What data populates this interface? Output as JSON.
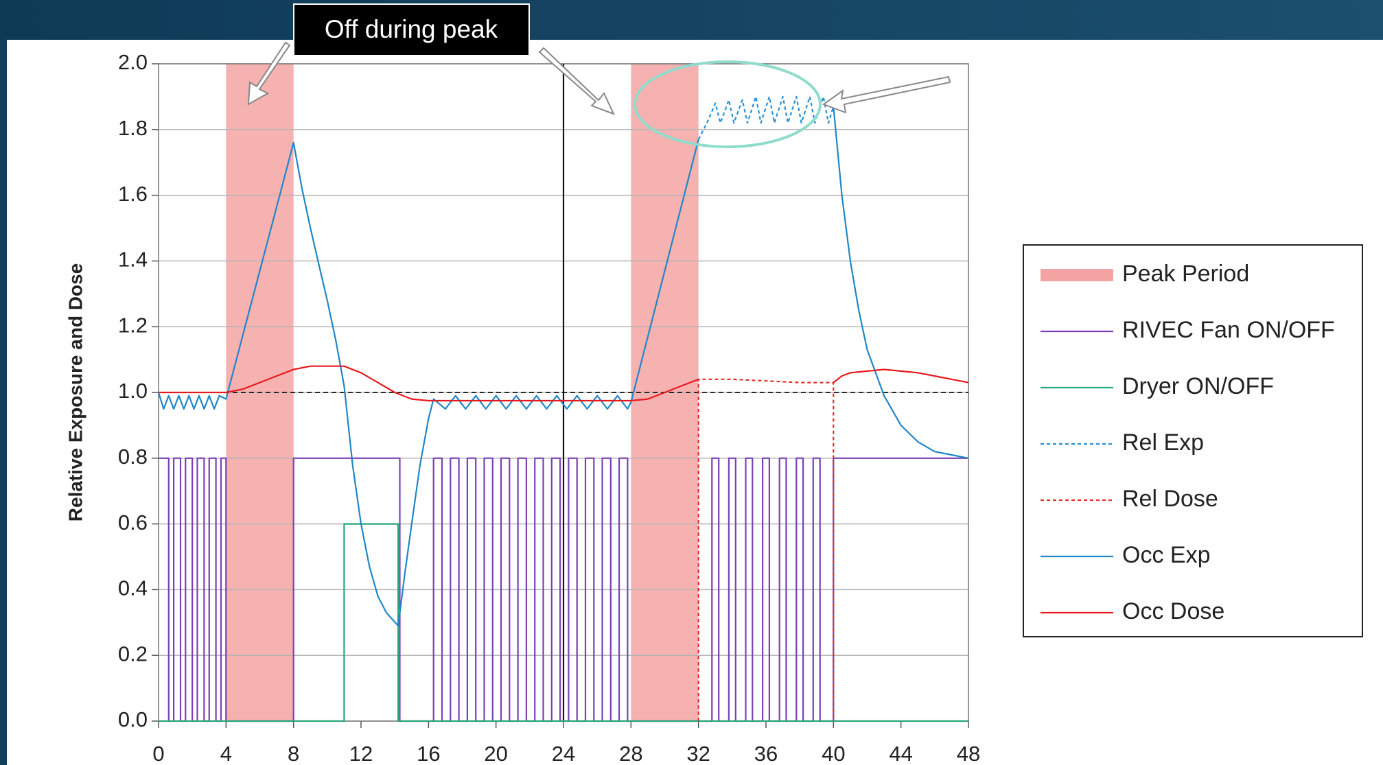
{
  "chart_data": {
    "type": "line",
    "annotation": "Off during peak",
    "ylabel": "Relative Exposure and Dose",
    "xlim": [
      0,
      48
    ],
    "xticks": [
      0,
      4,
      8,
      12,
      16,
      20,
      24,
      28,
      32,
      36,
      40,
      44,
      48
    ],
    "ylim": [
      0,
      2
    ],
    "yticks": [
      {
        "value": 0,
        "label": "0.0"
      },
      {
        "value": 0.2,
        "label": "0.2"
      },
      {
        "value": 0.4,
        "label": "0.4"
      },
      {
        "value": 0.6,
        "label": "0.6"
      },
      {
        "value": 0.8,
        "label": "0.8"
      },
      {
        "value": 1,
        "label": "1.0"
      },
      {
        "value": 1.2,
        "label": "1.2"
      },
      {
        "value": 1.4,
        "label": "1.4"
      },
      {
        "value": 1.6,
        "label": "1.6"
      },
      {
        "value": 1.8,
        "label": "1.8"
      },
      {
        "value": 2,
        "label": "2.0"
      }
    ],
    "grid": true,
    "reference_line": 1,
    "vertical_line": 24,
    "legend": "right",
    "series": [
      {
        "name": "Peak Period",
        "color": "#f4a3a3",
        "spans": [
          [
            4,
            8
          ],
          [
            28,
            32
          ]
        ]
      },
      {
        "name": "RIVEC Fan ON/OFF",
        "color": "#7b3fb8",
        "dash": false,
        "x": [
          0,
          0.6,
          0.6,
          0.9,
          0.9,
          1.3,
          1.3,
          1.6,
          1.6,
          2.0,
          2.0,
          2.3,
          2.3,
          2.7,
          2.7,
          3.0,
          3.0,
          3.4,
          3.4,
          3.7,
          3.7,
          4.0,
          4.0,
          8.0,
          8.0,
          14.3,
          14.3,
          16.3,
          16.3,
          16.8,
          16.8,
          17.3,
          17.3,
          17.8,
          17.8,
          18.3,
          18.3,
          18.8,
          18.8,
          19.3,
          19.3,
          19.8,
          19.8,
          20.3,
          20.3,
          20.8,
          20.8,
          21.3,
          21.3,
          21.8,
          21.8,
          22.3,
          22.3,
          22.8,
          22.8,
          23.3,
          23.3,
          23.8,
          23.8,
          24.3,
          24.3,
          24.8,
          24.8,
          25.3,
          25.3,
          25.8,
          25.8,
          26.3,
          26.3,
          26.8,
          26.8,
          27.3,
          27.3,
          27.8,
          27.8,
          32.8,
          32.8,
          33.2,
          33.2,
          33.8,
          33.8,
          34.2,
          34.2,
          34.8,
          34.8,
          35.2,
          35.2,
          35.8,
          35.8,
          36.2,
          36.2,
          36.8,
          36.8,
          37.2,
          37.2,
          37.8,
          37.8,
          38.2,
          38.2,
          38.8,
          38.8,
          39.2,
          39.2,
          40.0,
          40.0,
          48
        ],
        "values": [
          0.8,
          0.8,
          0,
          0,
          0.8,
          0.8,
          0,
          0,
          0.8,
          0.8,
          0,
          0,
          0.8,
          0.8,
          0,
          0,
          0.8,
          0.8,
          0,
          0,
          0.8,
          0.8,
          0,
          0,
          0.8,
          0.8,
          0,
          0,
          0.8,
          0.8,
          0,
          0,
          0.8,
          0.8,
          0,
          0,
          0.8,
          0.8,
          0,
          0,
          0.8,
          0.8,
          0,
          0,
          0.8,
          0.8,
          0,
          0,
          0.8,
          0.8,
          0,
          0,
          0.8,
          0.8,
          0,
          0,
          0.8,
          0.8,
          0,
          0,
          0.8,
          0.8,
          0,
          0,
          0.8,
          0.8,
          0,
          0,
          0.8,
          0.8,
          0,
          0,
          0.8,
          0.8,
          0,
          0,
          0.8,
          0.8,
          0,
          0,
          0.8,
          0.8,
          0,
          0,
          0.8,
          0.8,
          0,
          0,
          0.8,
          0.8,
          0,
          0,
          0.8,
          0.8,
          0,
          0,
          0.8,
          0.8,
          0,
          0,
          0.8,
          0.8,
          0,
          0,
          0.8,
          0.8
        ]
      },
      {
        "name": "Dryer ON/OFF",
        "color": "#27a87a",
        "dash": false,
        "x": [
          0,
          11,
          11,
          14.2,
          14.2,
          48
        ],
        "values": [
          0,
          0,
          0.6,
          0.6,
          0,
          0
        ]
      },
      {
        "name": "Rel Exp",
        "color": "#2a8fd6",
        "dash": true,
        "x": [
          32,
          32.5,
          33,
          33.3,
          33.8,
          34.1,
          34.6,
          34.9,
          35.4,
          35.7,
          36.2,
          36.5,
          37,
          37.3,
          37.8,
          38.1,
          38.6,
          38.9,
          39.4,
          39.7,
          40
        ],
        "values": [
          1.77,
          1.82,
          1.88,
          1.82,
          1.89,
          1.82,
          1.89,
          1.82,
          1.9,
          1.82,
          1.9,
          1.82,
          1.9,
          1.82,
          1.9,
          1.82,
          1.9,
          1.82,
          1.9,
          1.82,
          1.87
        ]
      },
      {
        "name": "Rel Dose",
        "color": "#e0302a",
        "dash": true,
        "x": [
          32,
          32,
          34,
          36,
          38,
          40,
          40
        ],
        "values": [
          0,
          1.04,
          1.04,
          1.035,
          1.03,
          1.03,
          0
        ]
      },
      {
        "name": "Occ Exp",
        "color": "#1f86c8",
        "dash": false,
        "x": [
          0,
          0.3,
          0.6,
          0.9,
          1.2,
          1.5,
          1.8,
          2.1,
          2.4,
          2.7,
          3.0,
          3.3,
          3.6,
          4.0,
          8.0,
          8.5,
          9,
          9.5,
          10,
          10.5,
          11,
          11.5,
          12,
          12.5,
          13,
          13.5,
          14.2,
          14.6,
          15,
          15.5,
          16,
          16.3,
          17,
          17.6,
          18.2,
          18.8,
          19.4,
          20,
          20.6,
          21.2,
          21.8,
          22.4,
          23,
          23.6,
          24.2,
          24.8,
          25.4,
          26,
          26.6,
          27.2,
          27.8,
          28,
          32,
          36,
          40,
          40.5,
          41,
          41.5,
          42,
          43,
          44,
          45,
          46,
          47,
          48
        ],
        "values": [
          1.0,
          0.95,
          0.99,
          0.95,
          0.99,
          0.95,
          0.99,
          0.95,
          0.99,
          0.95,
          0.99,
          0.95,
          0.99,
          0.98,
          1.76,
          1.62,
          1.5,
          1.39,
          1.28,
          1.16,
          1.02,
          0.78,
          0.6,
          0.47,
          0.38,
          0.33,
          0.29,
          0.45,
          0.6,
          0.78,
          0.92,
          0.98,
          0.95,
          0.99,
          0.95,
          0.99,
          0.95,
          0.99,
          0.95,
          0.99,
          0.95,
          0.99,
          0.95,
          0.99,
          0.95,
          0.99,
          0.95,
          0.99,
          0.95,
          0.99,
          0.95,
          0.97,
          1.77,
          null,
          1.87,
          1.6,
          1.4,
          1.25,
          1.13,
          0.99,
          0.9,
          0.85,
          0.82,
          0.81,
          0.8
        ]
      },
      {
        "name": "Occ Dose",
        "color": "#e8191c",
        "dash": false,
        "x": [
          0,
          4,
          5,
          6,
          7,
          8,
          9,
          10,
          11,
          12,
          13,
          14,
          15,
          16,
          20,
          24,
          28,
          29,
          30,
          31,
          32,
          36,
          40,
          40.5,
          41,
          42,
          43,
          44,
          45,
          46,
          47,
          48
        ],
        "values": [
          1.0,
          1.0,
          1.01,
          1.03,
          1.05,
          1.07,
          1.08,
          1.08,
          1.08,
          1.06,
          1.03,
          1.0,
          0.98,
          0.975,
          0.975,
          0.975,
          0.975,
          0.98,
          1.0,
          1.02,
          1.04,
          null,
          1.03,
          1.05,
          1.06,
          1.065,
          1.07,
          1.065,
          1.06,
          1.05,
          1.04,
          1.03
        ]
      }
    ]
  }
}
